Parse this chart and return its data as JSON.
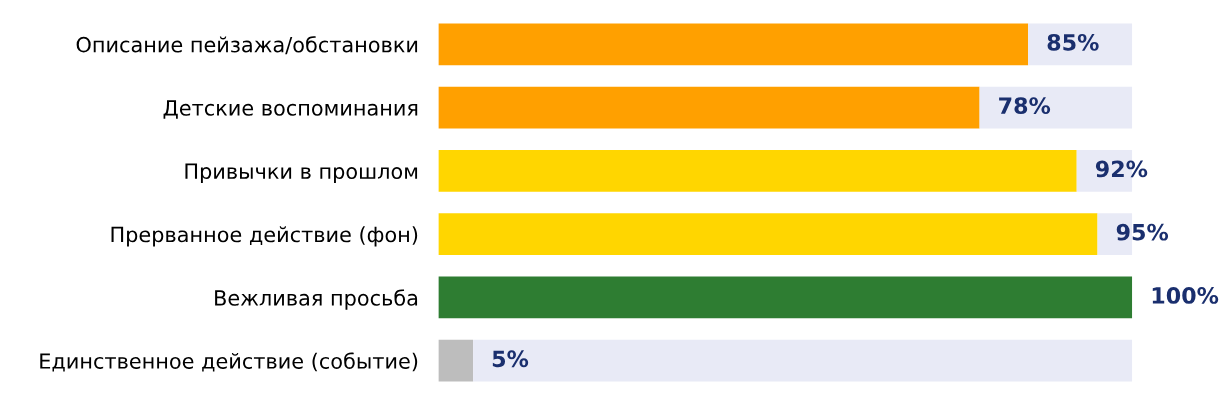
{
  "chart_data": {
    "type": "bar",
    "stacked": true,
    "orientation": "horizontal",
    "tick_labels": "y",
    "xlim": [
      0,
      100
    ],
    "grid": false,
    "legend": false,
    "categories": [
      "Описание пейзажа/обстановки",
      "Детские воспоминания",
      "Привычки в прошлом",
      "Прерванное действие (фон)",
      "Вежливая просьба",
      "Единственное действие (событие)"
    ],
    "series": [
      {
        "colors": [
          "#ffa000",
          "#ffa000",
          "#ffd600",
          "#ffd600",
          "#2e7d32",
          "#bdbdbd"
        ],
        "values": [
          85,
          78,
          92,
          95,
          100,
          5
        ],
        "value_labels": [
          "85%",
          "78%",
          "92%",
          "95%",
          "100%",
          "5%"
        ]
      },
      {
        "color": "#e8eaf6",
        "values": [
          15,
          22,
          8,
          5,
          0,
          95
        ]
      }
    ]
  }
}
